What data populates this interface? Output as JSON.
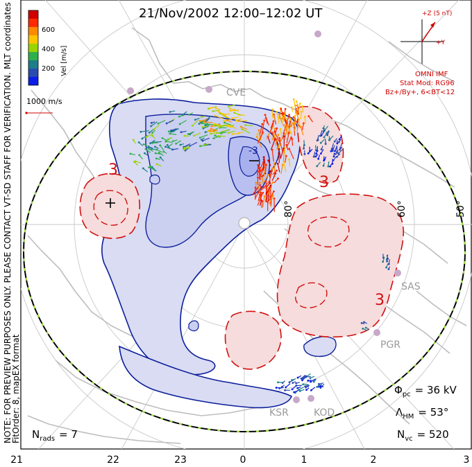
{
  "title": "21/Nov/2002 12:00–12:02 UT",
  "colorbar": {
    "ticks": [
      "600",
      "400",
      "200"
    ],
    "label": "Vel [m/s]",
    "colors": [
      "#d00000",
      "#ff2a00",
      "#ff8a00",
      "#ffc400",
      "#9bd400",
      "#2fb04a",
      "#1d7d8a",
      "#2a4bb0",
      "#0a1ee8"
    ]
  },
  "side_notes": {
    "mlt_coordinates": "MLT coordinates",
    "preview_note": "NOTE: FOR PREVIEW PURPOSES ONLY. PLEASE CONTACT VT-SD STAFF FOR VERIFICATION.",
    "fit_order": "FitOrder: 8, mapEX format"
  },
  "scale_vector": {
    "label": "1000 m/s"
  },
  "imf": {
    "z_label": "+Z (5 nT)",
    "y_label": "+Y",
    "source": "OMNI IMF",
    "stat_mod": "Stat Mod: RG96",
    "condition": "Bz+/By+, 6<BT<12"
  },
  "latitudes": [
    "80°",
    "60°",
    "50°"
  ],
  "stations": [
    "SAS",
    "PGR",
    "KSR",
    "KOD",
    "CVE"
  ],
  "contour_labels": [
    "-3",
    "3",
    "3",
    "3"
  ],
  "stats": {
    "phi_pc": {
      "symbol": "Φ",
      "sub": "pc",
      "value": "= 36 kV"
    },
    "lambda_hm": {
      "symbol": "Λ",
      "sub": "HM",
      "value": "= 53°"
    },
    "n_vc": {
      "symbol": "N",
      "sub": "vc",
      "value": "= 520"
    },
    "n_rads": {
      "symbol": "N",
      "sub": "rads",
      "value": "= 7"
    }
  },
  "mlt_axis": [
    "21",
    "22",
    "23",
    "0",
    "1",
    "2",
    "3"
  ]
}
